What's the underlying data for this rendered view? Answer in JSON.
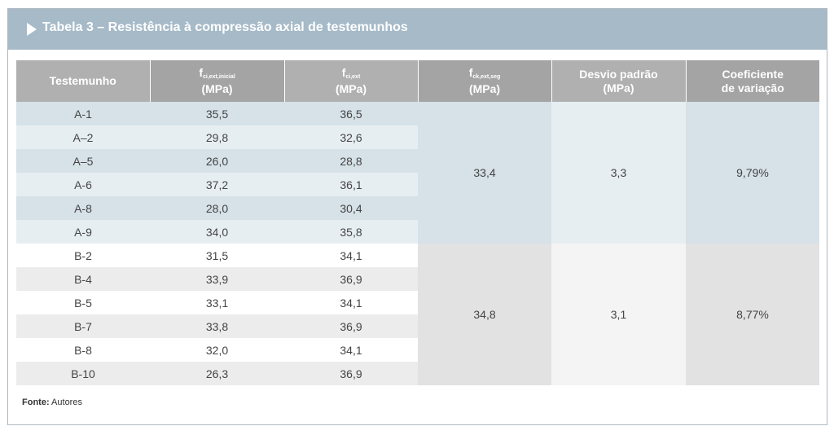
{
  "title": "Tabela 3 – Resistência à compressão axial de testemunhos",
  "headers": {
    "testemunho": "Testemunho",
    "fci_inicial_main": "f",
    "fci_inicial_sub": "ci,ext,inicial",
    "fci_inicial_unit": "(MPa)",
    "fci_main": "f",
    "fci_sub": "ci,ext",
    "fci_unit": "(MPa)",
    "fck_main": "f",
    "fck_sub": "ck,ext,seg",
    "fck_unit": "(MPa)",
    "desvio_line1": "Desvio padrão",
    "desvio_line2": "(MPa)",
    "coef_line1": "Coeficiente",
    "coef_line2": "de variação"
  },
  "rows": [
    {
      "id": "A-1",
      "fci_inicial": "35,5",
      "fci": "36,5"
    },
    {
      "id": "A–2",
      "fci_inicial": "29,8",
      "fci": "32,6"
    },
    {
      "id": "A–5",
      "fci_inicial": "26,0",
      "fci": "28,8"
    },
    {
      "id": "A-6",
      "fci_inicial": "37,2",
      "fci": "36,1"
    },
    {
      "id": "A-8",
      "fci_inicial": "28,0",
      "fci": "30,4"
    },
    {
      "id": "A-9",
      "fci_inicial": "34,0",
      "fci": "35,8"
    },
    {
      "id": "B-2",
      "fci_inicial": "31,5",
      "fci": "34,1"
    },
    {
      "id": "B-4",
      "fci_inicial": "33,9",
      "fci": "36,9"
    },
    {
      "id": "B-5",
      "fci_inicial": "33,1",
      "fci": "34,1"
    },
    {
      "id": "B-7",
      "fci_inicial": "33,8",
      "fci": "36,9"
    },
    {
      "id": "B-8",
      "fci_inicial": "32,0",
      "fci": "34,1"
    },
    {
      "id": "B-10",
      "fci_inicial": "26,3",
      "fci": "36,9"
    }
  ],
  "groups": [
    {
      "fck": "33,4",
      "desvio": "3,3",
      "coef": "9,79%"
    },
    {
      "fck": "34,8",
      "desvio": "3,1",
      "coef": "8,77%"
    }
  ],
  "footer": {
    "label": "Fonte:",
    "text": " Autores"
  },
  "colors": {
    "title_bar": "#a6bac8",
    "header_bg": "#b0b0b0",
    "group_a_row": "#d6e1e8",
    "group_a_alt": "#e7eef2",
    "group_b_alt": "#ececec"
  }
}
